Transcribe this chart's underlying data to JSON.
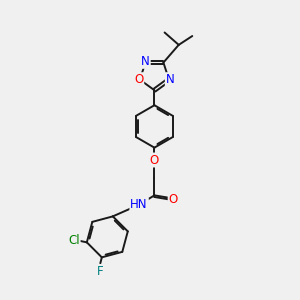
{
  "background_color": "#f0f0f0",
  "bond_color": "#1a1a1a",
  "atom_colors": {
    "N": "#0000ff",
    "O": "#ff0000",
    "Cl": "#008000",
    "F": "#008080",
    "C": "#1a1a1a"
  },
  "font_size": 8.5,
  "bond_width": 1.4,
  "dbo": 0.055
}
